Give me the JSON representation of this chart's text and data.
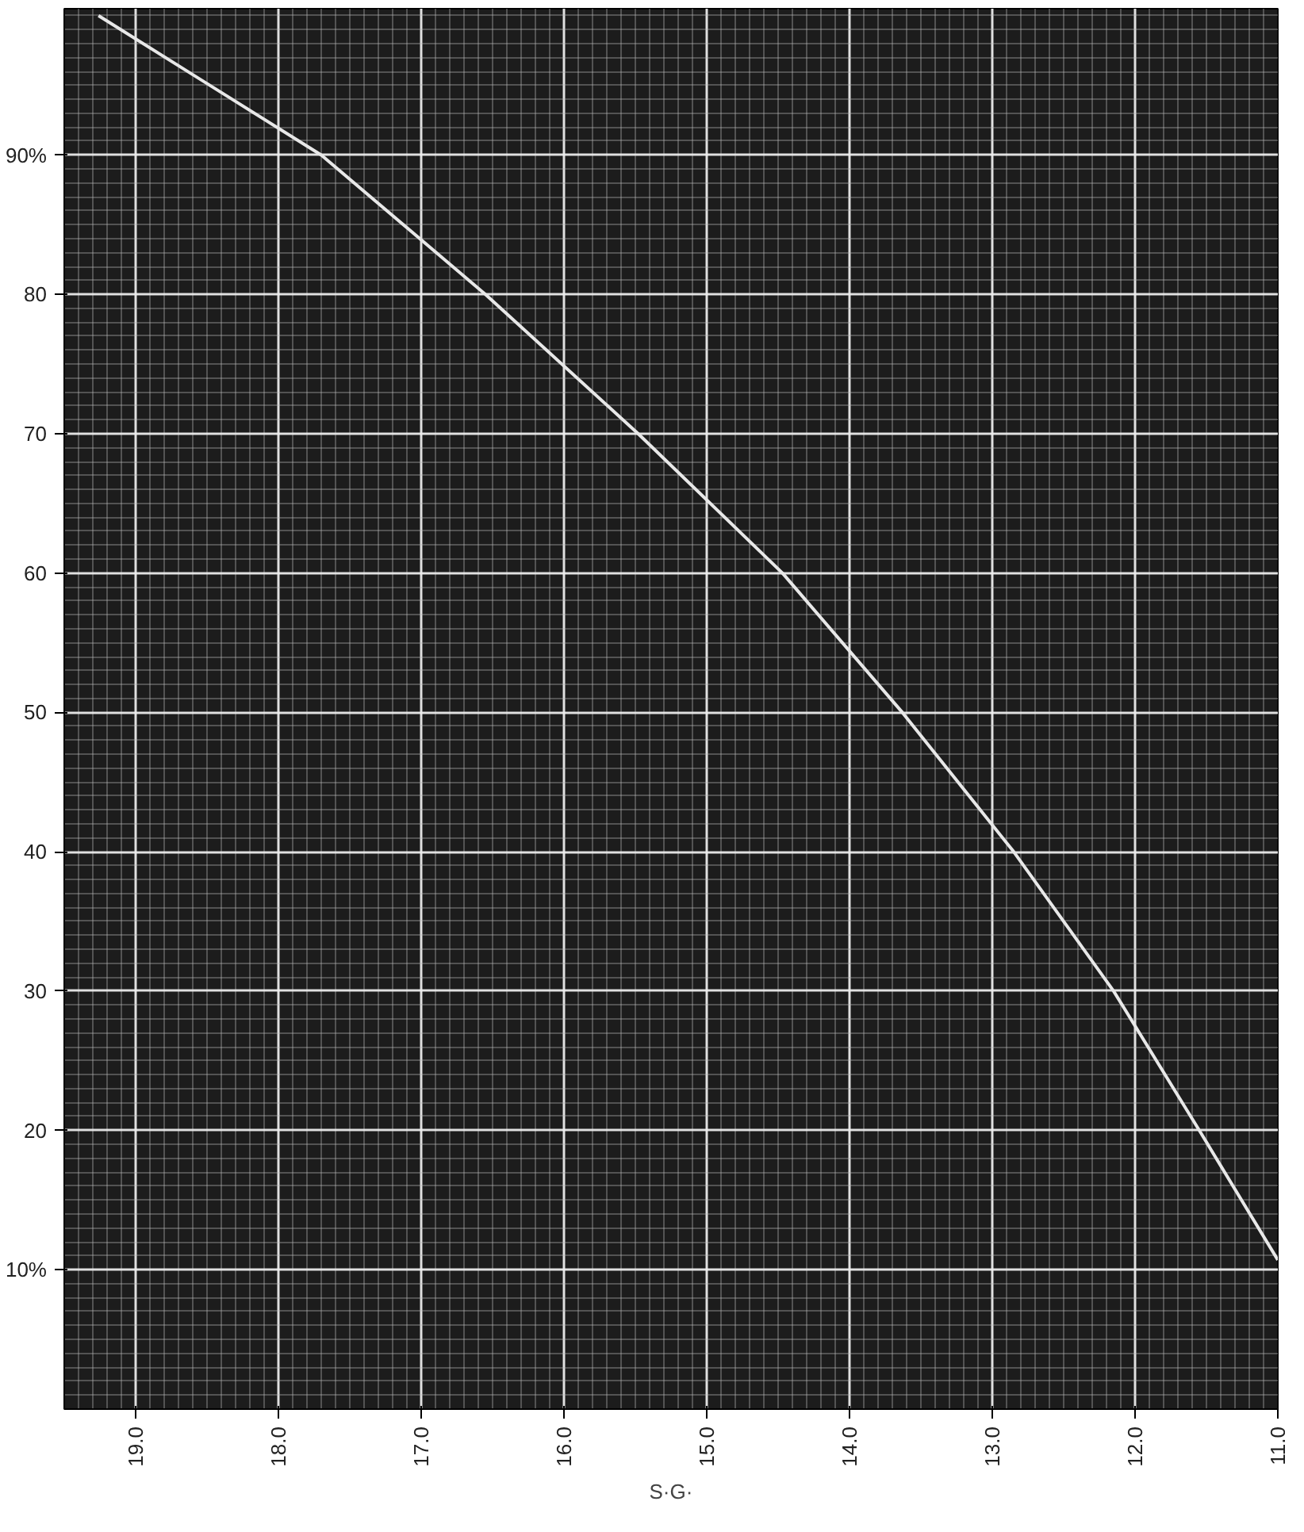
{
  "chart_data": {
    "type": "line",
    "xlabel": "S·G·",
    "x": [
      19.26,
      17.7,
      16.55,
      15.48,
      14.47,
      13.63,
      12.85,
      12.15,
      11.55,
      11.0
    ],
    "series": [
      {
        "color": "#e8e8e8",
        "values": [
          100,
          90,
          80,
          70,
          60,
          50,
          40,
          30,
          20,
          10.7
        ]
      }
    ],
    "xlim": [
      19.5,
      11.0
    ],
    "xticks": [
      {
        "value": 19,
        "label": "19.0"
      },
      {
        "value": 18,
        "label": "18.0"
      },
      {
        "value": 17,
        "label": "17.0"
      },
      {
        "value": 16,
        "label": "16.0"
      },
      {
        "value": 15,
        "label": "15.0"
      },
      {
        "value": 14,
        "label": "14.0"
      },
      {
        "value": 13,
        "label": "13.0"
      },
      {
        "value": 12,
        "label": "12.0"
      },
      {
        "value": 11,
        "label": "11.0"
      }
    ],
    "ylim": [
      0,
      100.5
    ],
    "yticks": [
      {
        "value": 10,
        "label": "10%"
      },
      20,
      30,
      40,
      50,
      60,
      70,
      80,
      {
        "value": 90,
        "label": "90%"
      }
    ],
    "grid": true,
    "line_style": "solid",
    "marker": "none"
  }
}
